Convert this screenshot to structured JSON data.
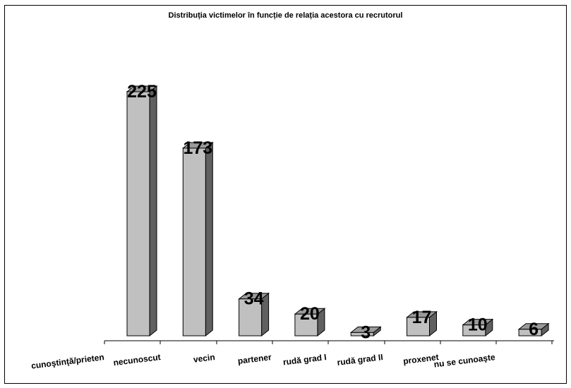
{
  "chart_data": {
    "type": "bar",
    "title": "Distribuția victimelor în funcție de relația acestora cu recrutorul",
    "categories": [
      "cunoştinţă/prieten",
      "necunoscut",
      "vecin",
      "partener",
      "rudă grad I",
      "rudă grad II",
      "proxenet",
      "nu se cunoaşte"
    ],
    "values": [
      225,
      173,
      34,
      20,
      3,
      17,
      10,
      6
    ],
    "ylim": [
      0,
      225
    ],
    "grid": false,
    "legend": "none",
    "xlabel": "",
    "ylabel": "",
    "colors": {
      "front": "#c0c0c0",
      "side": "#606060",
      "top": "#9a9a9a",
      "stroke": "#000000"
    }
  }
}
